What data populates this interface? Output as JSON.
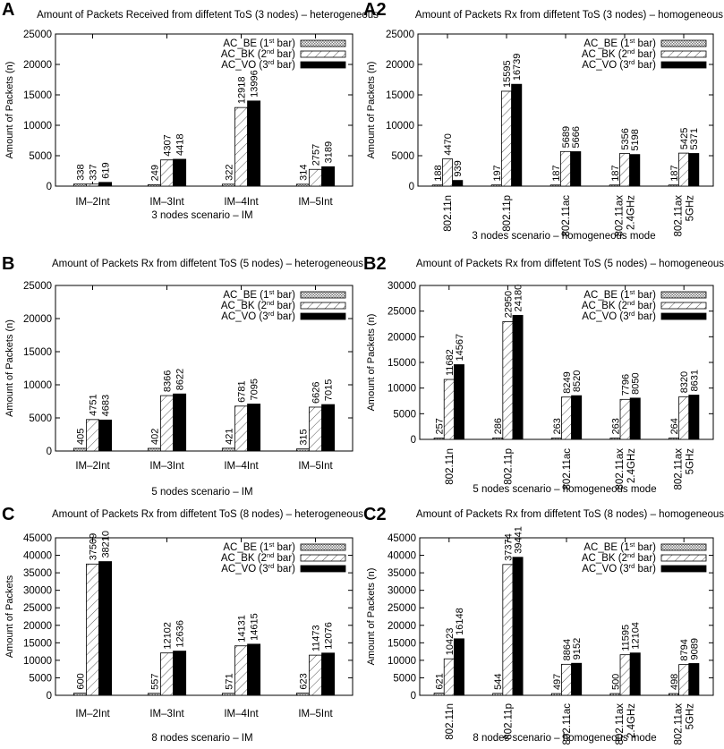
{
  "legend": [
    {
      "name": "AC_BE",
      "pre": "AC_BE (1",
      "sup": "st",
      "post": " bar)"
    },
    {
      "name": "AC_BK",
      "pre": "AC_BK (2",
      "sup": "nd",
      "post": " bar)"
    },
    {
      "name": "AC_VO",
      "pre": "AC_VO (3",
      "sup": "rd",
      "post": " bar)"
    }
  ],
  "chart_data": [
    {
      "id": "A",
      "letter": "A",
      "type": "bar",
      "title": "Amount of Packets Received from diffetent ToS (3 nodes) – heterogeneous",
      "xlabel": "3 nodes scenario – IM",
      "ylabel": "Amount of Packets (n)",
      "ylim": [
        0,
        25000
      ],
      "yticks": [
        0,
        5000,
        10000,
        15000,
        20000,
        25000
      ],
      "categories": [
        "IM–2Int",
        "IM–3Int",
        "IM–4Int",
        "IM–5Int"
      ],
      "rotated_categories": false,
      "series": [
        {
          "name": "AC_BE",
          "values": [
            338,
            249,
            322,
            314
          ]
        },
        {
          "name": "AC_BK",
          "values": [
            337,
            4307,
            12918,
            2757
          ]
        },
        {
          "name": "AC_VO",
          "values": [
            619,
            4418,
            13996,
            3189
          ]
        }
      ]
    },
    {
      "id": "A2",
      "letter": "A2",
      "type": "bar",
      "title": "Amount of Packets Rx from diffetent ToS (3 nodes) – homogeneous",
      "xlabel": "3 nodes scenario – homogeneous mode",
      "ylabel": "Amount of Packets (n)",
      "ylim": [
        0,
        25000
      ],
      "yticks": [
        0,
        5000,
        10000,
        15000,
        20000,
        25000
      ],
      "categories": [
        "802.11n",
        "802.11p",
        "802.11ac",
        "802.11ax 2.4GHz",
        "802.11ax 5GHz"
      ],
      "rotated_categories": true,
      "series": [
        {
          "name": "AC_BE",
          "values": [
            188,
            197,
            187,
            187,
            187
          ]
        },
        {
          "name": "AC_BK",
          "values": [
            4470,
            15595,
            5689,
            5356,
            5425
          ]
        },
        {
          "name": "AC_VO",
          "values": [
            939,
            16739,
            5666,
            5198,
            5371
          ]
        }
      ]
    },
    {
      "id": "B",
      "letter": "B",
      "type": "bar",
      "title": "Amount of Packets Rx from diffetent ToS (5 nodes) – heterogeneous",
      "xlabel": "5 nodes scenario – IM",
      "ylabel": "Amount of Packets (n)",
      "ylim": [
        0,
        25000
      ],
      "yticks": [
        0,
        5000,
        10000,
        15000,
        20000,
        25000
      ],
      "categories": [
        "IM–2Int",
        "IM–3Int",
        "IM–4Int",
        "IM–5Int"
      ],
      "rotated_categories": false,
      "series": [
        {
          "name": "AC_BE",
          "values": [
            405,
            402,
            421,
            315
          ]
        },
        {
          "name": "AC_BK",
          "values": [
            4751,
            8366,
            6781,
            6626
          ]
        },
        {
          "name": "AC_VO",
          "values": [
            4683,
            8622,
            7095,
            7015
          ]
        }
      ]
    },
    {
      "id": "B2",
      "letter": "B2",
      "type": "bar",
      "title": "Amount of Packets Rx from diffetent ToS (5 nodes) – homogeneous",
      "xlabel": "5 nodes scenario – homogeneous mode",
      "ylabel": "Amount of Packets (n)",
      "ylim": [
        0,
        30000
      ],
      "yticks": [
        0,
        5000,
        10000,
        15000,
        20000,
        25000,
        30000
      ],
      "categories": [
        "802.11n",
        "802.11p",
        "802.11ac",
        "802.11ax 2.4GHz",
        "802.11ax 5GHz"
      ],
      "rotated_categories": true,
      "series": [
        {
          "name": "AC_BE",
          "values": [
            257,
            286,
            263,
            263,
            264
          ]
        },
        {
          "name": "AC_BK",
          "values": [
            11682,
            22950,
            8249,
            7796,
            8320
          ]
        },
        {
          "name": "AC_VO",
          "values": [
            14567,
            24180,
            8520,
            8050,
            8631
          ]
        }
      ]
    },
    {
      "id": "C",
      "letter": "C",
      "type": "bar",
      "title": "Amount of Packets Rx from diffetent ToS (8 nodes) – heterogeneous",
      "xlabel": "8 nodes scenario – IM",
      "ylabel": "Amount of Packets",
      "ylim": [
        0,
        45000
      ],
      "yticks": [
        0,
        5000,
        10000,
        15000,
        20000,
        25000,
        30000,
        35000,
        40000,
        45000
      ],
      "categories": [
        "IM–2Int",
        "IM–3Int",
        "IM–4Int",
        "IM–5Int"
      ],
      "rotated_categories": false,
      "series": [
        {
          "name": "AC_BE",
          "values": [
            600,
            557,
            571,
            623
          ]
        },
        {
          "name": "AC_BK",
          "values": [
            37509,
            12102,
            14131,
            11473
          ]
        },
        {
          "name": "AC_VO",
          "values": [
            38210,
            12636,
            14615,
            12076
          ]
        }
      ]
    },
    {
      "id": "C2",
      "letter": "C2",
      "type": "bar",
      "title": "Amount of Packets Rx from diffetent ToS (8 nodes) – homogeneous",
      "xlabel": "8 nodes scenario – homogeneous mode",
      "ylabel": "Amount of Packets (n)",
      "ylim": [
        0,
        45000
      ],
      "yticks": [
        0,
        5000,
        10000,
        15000,
        20000,
        25000,
        30000,
        35000,
        40000,
        45000
      ],
      "categories": [
        "802.11n",
        "802.11p",
        "802.11ac",
        "802.11ax 2.4GHz",
        "802.11ax 5GHz"
      ],
      "rotated_categories": true,
      "series": [
        {
          "name": "AC_BE",
          "values": [
            621,
            544,
            497,
            500,
            498
          ]
        },
        {
          "name": "AC_BK",
          "values": [
            10423,
            37374,
            8864,
            11595,
            8794
          ]
        },
        {
          "name": "AC_VO",
          "values": [
            16148,
            39441,
            9152,
            12104,
            9089
          ]
        }
      ]
    }
  ]
}
